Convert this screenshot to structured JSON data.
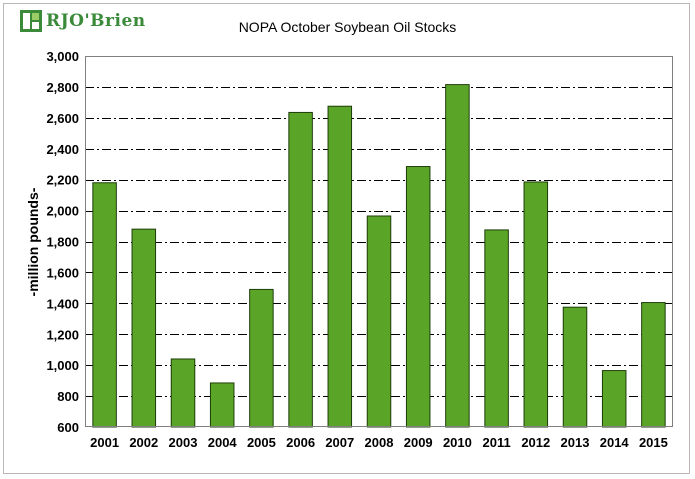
{
  "logo": {
    "text": "RJO'Brien",
    "icon": "rjobrien-logo-icon"
  },
  "chart_data": {
    "type": "bar",
    "title": "NOPA October Soybean Oil Stocks",
    "xlabel": "",
    "ylabel": "-million pounds-",
    "categories": [
      "2001",
      "2002",
      "2003",
      "2004",
      "2005",
      "2006",
      "2007",
      "2008",
      "2009",
      "2010",
      "2011",
      "2012",
      "2013",
      "2014",
      "2015"
    ],
    "series": [
      {
        "name": "Soybean Oil Stocks",
        "values": [
          2180,
          1880,
          1040,
          885,
          1490,
          2635,
          2675,
          1965,
          2285,
          2815,
          1875,
          2185,
          1375,
          965,
          1405
        ]
      }
    ],
    "ylim": [
      600,
      3000
    ],
    "yticks": [
      600,
      800,
      1000,
      1200,
      1400,
      1600,
      1800,
      2000,
      2200,
      2400,
      2600,
      2800,
      3000
    ],
    "ytick_labels": [
      "600",
      "800",
      "1,000",
      "1,200",
      "1,400",
      "1,600",
      "1,800",
      "2,000",
      "2,200",
      "2,400",
      "2,600",
      "2,800",
      "3,000"
    ],
    "grid": true,
    "legend": "none",
    "colors": {
      "bar": "#5aa427",
      "bar_edge": "#1e3d0a",
      "grid": "#000000",
      "plot_border": "#808080"
    }
  }
}
